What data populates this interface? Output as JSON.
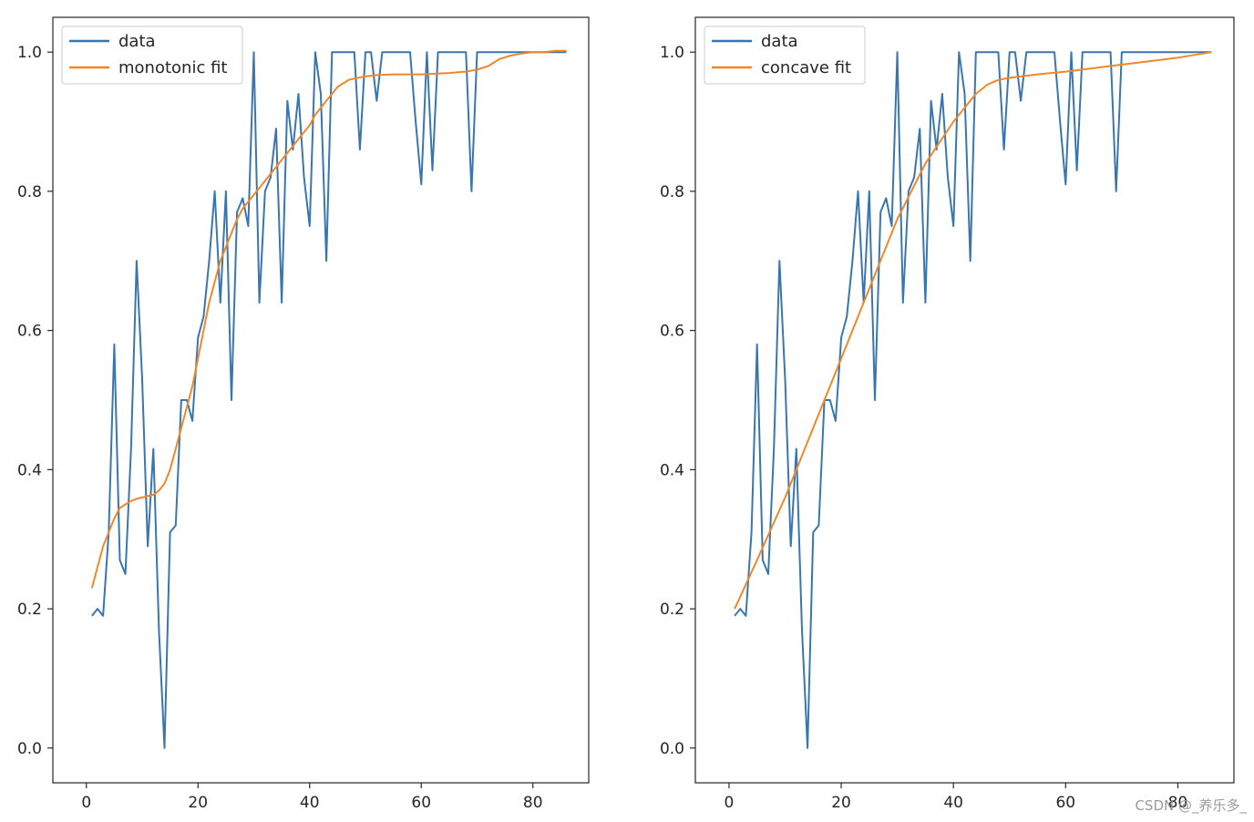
{
  "colors": {
    "data": "#3a76ae",
    "fit": "#f0882a",
    "axis": "#262626"
  },
  "watermark": "CSDN @_养乐多_",
  "chart_data": [
    {
      "type": "line",
      "title": "",
      "xlabel": "",
      "ylabel": "",
      "xlim": [
        -6,
        90
      ],
      "ylim": [
        -0.05,
        1.05
      ],
      "xticks": [
        0,
        20,
        40,
        60,
        80
      ],
      "yticks": [
        0.0,
        0.2,
        0.4,
        0.6,
        0.8,
        1.0
      ],
      "xtick_labels": [
        "0",
        "20",
        "40",
        "60",
        "80"
      ],
      "ytick_labels": [
        "0.0",
        "0.2",
        "0.4",
        "0.6",
        "0.8",
        "1.0"
      ],
      "legend": {
        "position": "top-left",
        "entries": [
          "data",
          "monotonic fit"
        ]
      },
      "series": [
        {
          "name": "data",
          "x": [
            1,
            2,
            3,
            4,
            5,
            6,
            7,
            8,
            9,
            10,
            11,
            12,
            13,
            14,
            15,
            16,
            17,
            18,
            19,
            20,
            21,
            22,
            23,
            24,
            25,
            26,
            27,
            28,
            29,
            30,
            31,
            32,
            33,
            34,
            35,
            36,
            37,
            38,
            39,
            40,
            41,
            42,
            43,
            44,
            45,
            46,
            47,
            48,
            49,
            50,
            51,
            52,
            53,
            54,
            55,
            56,
            57,
            58,
            59,
            60,
            61,
            62,
            63,
            64,
            65,
            66,
            67,
            68,
            69,
            70,
            71,
            72,
            73,
            74,
            75,
            76,
            77,
            78,
            79,
            80,
            81,
            82,
            83,
            84,
            85,
            86
          ],
          "y": [
            0.19,
            0.2,
            0.19,
            0.31,
            0.58,
            0.27,
            0.25,
            0.43,
            0.7,
            0.53,
            0.29,
            0.43,
            0.17,
            0.0,
            0.31,
            0.32,
            0.5,
            0.5,
            0.47,
            0.59,
            0.62,
            0.7,
            0.8,
            0.64,
            0.8,
            0.5,
            0.77,
            0.79,
            0.75,
            1.0,
            0.64,
            0.8,
            0.82,
            0.89,
            0.64,
            0.93,
            0.86,
            0.94,
            0.82,
            0.75,
            1.0,
            0.94,
            0.7,
            1.0,
            1.0,
            1.0,
            1.0,
            1.0,
            0.86,
            1.0,
            1.0,
            0.93,
            1.0,
            1.0,
            1.0,
            1.0,
            1.0,
            1.0,
            0.9,
            0.81,
            1.0,
            0.83,
            1.0,
            1.0,
            1.0,
            1.0,
            1.0,
            1.0,
            0.8,
            1.0,
            1.0,
            1.0,
            1.0,
            1.0,
            1.0,
            1.0,
            1.0,
            1.0,
            1.0,
            1.0,
            1.0,
            1.0,
            1.0,
            1.0,
            1.0,
            1.0
          ]
        },
        {
          "name": "monotonic fit",
          "x": [
            1,
            2,
            3,
            4,
            5,
            6,
            7,
            8,
            9,
            10,
            11,
            12,
            13,
            14,
            15,
            16,
            17,
            18,
            19,
            20,
            21,
            22,
            23,
            24,
            25,
            26,
            27,
            28,
            29,
            30,
            31,
            32,
            33,
            34,
            35,
            36,
            37,
            38,
            39,
            40,
            41,
            42,
            43,
            44,
            45,
            46,
            47,
            48,
            50,
            52,
            55,
            60,
            65,
            68,
            70,
            72,
            74,
            76,
            78,
            80,
            82,
            84,
            86
          ],
          "y": [
            0.23,
            0.26,
            0.29,
            0.31,
            0.33,
            0.345,
            0.35,
            0.355,
            0.358,
            0.36,
            0.362,
            0.364,
            0.37,
            0.38,
            0.4,
            0.43,
            0.46,
            0.49,
            0.52,
            0.56,
            0.6,
            0.64,
            0.67,
            0.7,
            0.72,
            0.74,
            0.76,
            0.775,
            0.785,
            0.795,
            0.805,
            0.815,
            0.825,
            0.835,
            0.845,
            0.855,
            0.865,
            0.875,
            0.885,
            0.895,
            0.91,
            0.92,
            0.93,
            0.94,
            0.95,
            0.955,
            0.96,
            0.962,
            0.965,
            0.967,
            0.968,
            0.968,
            0.97,
            0.972,
            0.975,
            0.98,
            0.99,
            0.995,
            0.998,
            1.0,
            1.0,
            1.002,
            1.002
          ]
        }
      ]
    },
    {
      "type": "line",
      "title": "",
      "xlabel": "",
      "ylabel": "",
      "xlim": [
        -6,
        90
      ],
      "ylim": [
        -0.05,
        1.05
      ],
      "xticks": [
        0,
        20,
        40,
        60,
        80
      ],
      "yticks": [
        0.0,
        0.2,
        0.4,
        0.6,
        0.8,
        1.0
      ],
      "xtick_labels": [
        "0",
        "20",
        "40",
        "60",
        "80"
      ],
      "ytick_labels": [
        "0.0",
        "0.2",
        "0.4",
        "0.6",
        "0.8",
        "1.0"
      ],
      "legend": {
        "position": "top-left",
        "entries": [
          "data",
          "concave fit"
        ]
      },
      "series": [
        {
          "name": "data",
          "x": [
            1,
            2,
            3,
            4,
            5,
            6,
            7,
            8,
            9,
            10,
            11,
            12,
            13,
            14,
            15,
            16,
            17,
            18,
            19,
            20,
            21,
            22,
            23,
            24,
            25,
            26,
            27,
            28,
            29,
            30,
            31,
            32,
            33,
            34,
            35,
            36,
            37,
            38,
            39,
            40,
            41,
            42,
            43,
            44,
            45,
            46,
            47,
            48,
            49,
            50,
            51,
            52,
            53,
            54,
            55,
            56,
            57,
            58,
            59,
            60,
            61,
            62,
            63,
            64,
            65,
            66,
            67,
            68,
            69,
            70,
            71,
            72,
            73,
            74,
            75,
            76,
            77,
            78,
            79,
            80,
            81,
            82,
            83,
            84,
            85,
            86
          ],
          "y": [
            0.19,
            0.2,
            0.19,
            0.31,
            0.58,
            0.27,
            0.25,
            0.43,
            0.7,
            0.53,
            0.29,
            0.43,
            0.17,
            0.0,
            0.31,
            0.32,
            0.5,
            0.5,
            0.47,
            0.59,
            0.62,
            0.7,
            0.8,
            0.64,
            0.8,
            0.5,
            0.77,
            0.79,
            0.75,
            1.0,
            0.64,
            0.8,
            0.82,
            0.89,
            0.64,
            0.93,
            0.86,
            0.94,
            0.82,
            0.75,
            1.0,
            0.94,
            0.7,
            1.0,
            1.0,
            1.0,
            1.0,
            1.0,
            0.86,
            1.0,
            1.0,
            0.93,
            1.0,
            1.0,
            1.0,
            1.0,
            1.0,
            1.0,
            0.9,
            0.81,
            1.0,
            0.83,
            1.0,
            1.0,
            1.0,
            1.0,
            1.0,
            1.0,
            0.8,
            1.0,
            1.0,
            1.0,
            1.0,
            1.0,
            1.0,
            1.0,
            1.0,
            1.0,
            1.0,
            1.0,
            1.0,
            1.0,
            1.0,
            1.0,
            1.0,
            1.0
          ]
        },
        {
          "name": "concave fit",
          "x": [
            1,
            5,
            10,
            15,
            20,
            25,
            30,
            35,
            40,
            42,
            44,
            46,
            48,
            50,
            55,
            60,
            65,
            70,
            75,
            80,
            86
          ],
          "y": [
            0.2,
            0.27,
            0.36,
            0.46,
            0.56,
            0.66,
            0.76,
            0.84,
            0.9,
            0.92,
            0.94,
            0.953,
            0.96,
            0.963,
            0.968,
            0.972,
            0.977,
            0.982,
            0.987,
            0.992,
            1.0
          ]
        }
      ]
    }
  ]
}
